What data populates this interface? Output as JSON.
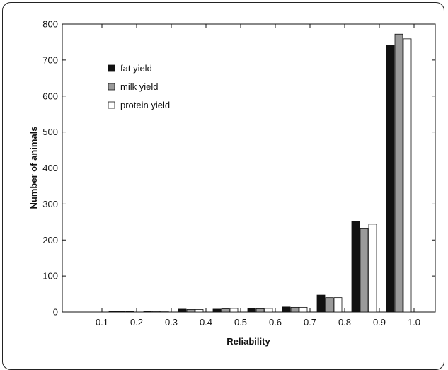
{
  "chart_data": {
    "type": "bar",
    "xlabel": "Reliability",
    "ylabel": "Number of animals",
    "ylim": [
      0,
      800
    ],
    "yticks": [
      0,
      100,
      200,
      300,
      400,
      500,
      600,
      700,
      800
    ],
    "categories": [
      "0.1",
      "0.2",
      "0.3",
      "0.4",
      "0.5",
      "0.6",
      "0.7",
      "0.8",
      "0.9",
      "1.0"
    ],
    "legend_position": "top-left",
    "grid": false,
    "series": [
      {
        "name": "fat yield",
        "color": "#111111",
        "values": [
          0,
          1,
          2,
          8,
          8,
          11,
          14,
          47,
          252,
          741
        ]
      },
      {
        "name": "milk yield",
        "color": "#9a9a9a",
        "values": [
          0,
          1,
          2,
          7,
          9,
          9,
          13,
          40,
          233,
          772
        ]
      },
      {
        "name": "protein yield",
        "color": "#ffffff",
        "values": [
          0,
          1,
          2,
          7,
          10,
          10,
          13,
          40,
          244,
          759
        ]
      }
    ]
  }
}
